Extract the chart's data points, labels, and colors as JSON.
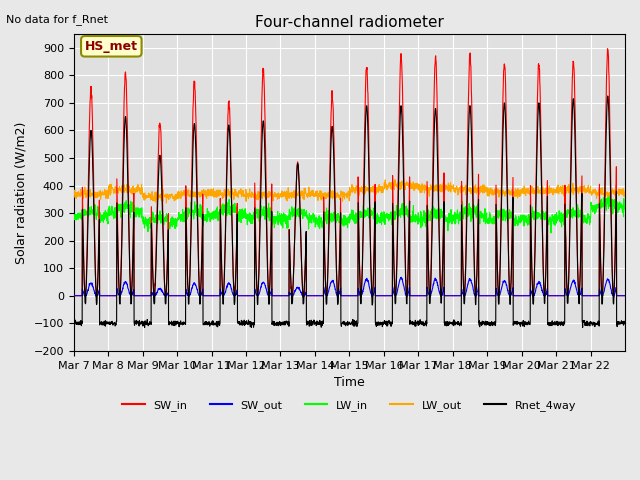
{
  "title": "Four-channel radiometer",
  "top_left_text": "No data for f_Rnet",
  "station_label": "HS_met",
  "ylabel": "Solar radiation (W/m2)",
  "xlabel": "Time",
  "ylim": [
    -200,
    950
  ],
  "yticks": [
    -200,
    -100,
    0,
    100,
    200,
    300,
    400,
    500,
    600,
    700,
    800,
    900
  ],
  "x_tick_labels": [
    "Mar 7",
    "Mar 8",
    "Mar 9",
    "Mar 10",
    "Mar 11",
    "Mar 12",
    "Mar 13",
    "Mar 14",
    "Mar 15",
    "Mar 16",
    "Mar 17",
    "Mar 18",
    "Mar 19",
    "Mar 20",
    "Mar 21",
    "Mar 22"
  ],
  "num_days": 16,
  "colors": {
    "SW_in": "#ff0000",
    "SW_out": "#0000ff",
    "LW_in": "#00ff00",
    "LW_out": "#ffa500",
    "Rnet_4way": "#000000"
  },
  "bg_color": "#e8e8e8",
  "plot_bg_color": "#e0e0e0",
  "grid_color": "#ffffff",
  "SW_in_peaks": [
    750,
    810,
    630,
    775,
    700,
    820,
    480,
    725,
    830,
    870,
    865,
    870,
    845,
    840,
    855,
    890
  ],
  "SW_out_peaks": [
    45,
    50,
    25,
    45,
    45,
    50,
    30,
    55,
    60,
    65,
    60,
    60,
    55,
    50,
    55,
    60
  ],
  "LW_in_base": [
    285,
    300,
    265,
    285,
    295,
    280,
    280,
    270,
    280,
    285,
    280,
    285,
    275,
    275,
    280,
    320
  ],
  "LW_out_base": [
    370,
    385,
    360,
    370,
    370,
    365,
    370,
    365,
    385,
    400,
    390,
    385,
    375,
    380,
    385,
    375
  ],
  "Rnet_night": -100,
  "Rnet_day_peaks": [
    600,
    650,
    510,
    625,
    620,
    635,
    480,
    615,
    690,
    690,
    680,
    690,
    700,
    700,
    715,
    725
  ]
}
